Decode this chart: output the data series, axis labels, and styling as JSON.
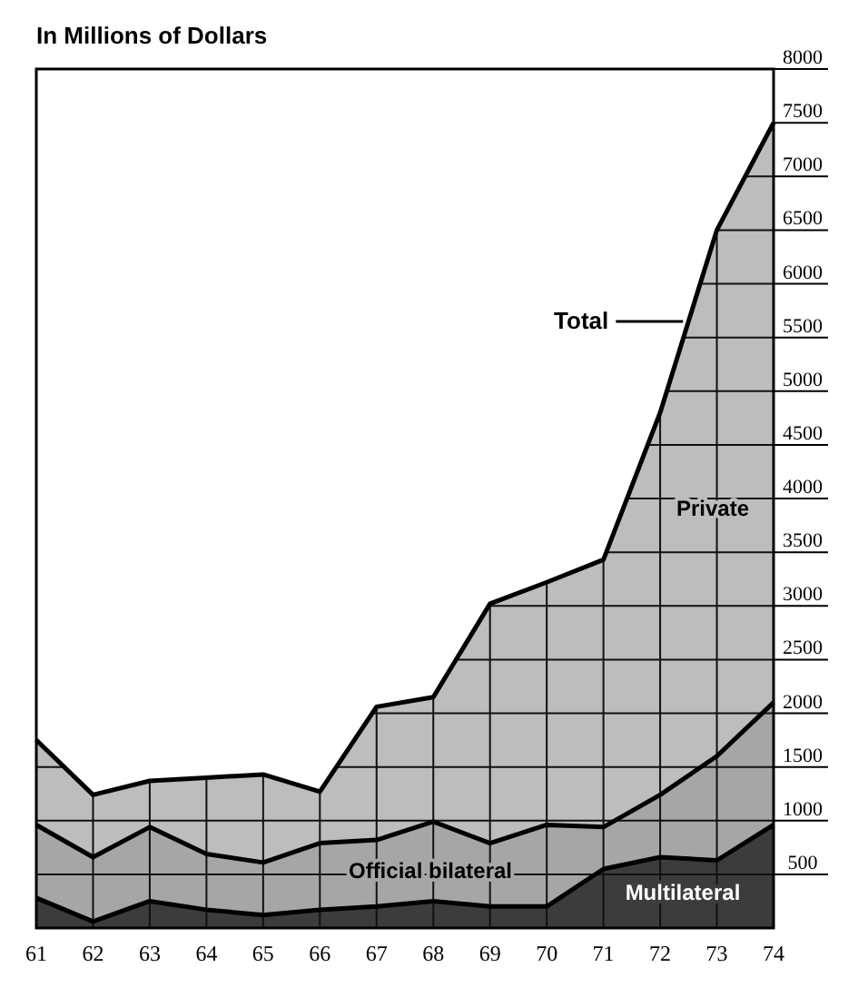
{
  "chart_data": {
    "type": "area",
    "stacked": true,
    "ylabel": "In Millions of Dollars",
    "categories": [
      "61",
      "62",
      "63",
      "64",
      "65",
      "66",
      "67",
      "68",
      "69",
      "70",
      "71",
      "72",
      "73",
      "74"
    ],
    "series": [
      {
        "name": "Multilateral",
        "color": "#3c3c3c",
        "values": [
          280,
          60,
          250,
          170,
          120,
          170,
          200,
          250,
          200,
          200,
          550,
          660,
          630,
          960
        ]
      },
      {
        "name": "Official bilateral",
        "color": "#a6a6a6",
        "values": [
          680,
          600,
          690,
          520,
          490,
          620,
          620,
          740,
          590,
          760,
          390,
          580,
          970,
          1140
        ]
      },
      {
        "name": "Private",
        "color": "#bdbdbd",
        "values": [
          790,
          580,
          430,
          710,
          820,
          480,
          1240,
          1160,
          2230,
          2260,
          2490,
          3560,
          4900,
          5400
        ]
      }
    ],
    "ylim": [
      0,
      8000
    ],
    "yticks": [
      500,
      1000,
      1500,
      2000,
      2500,
      3000,
      3500,
      4000,
      4500,
      5000,
      5500,
      6000,
      6500,
      7000,
      7500,
      8000
    ],
    "grid": true,
    "annotations": [
      "Total"
    ]
  }
}
